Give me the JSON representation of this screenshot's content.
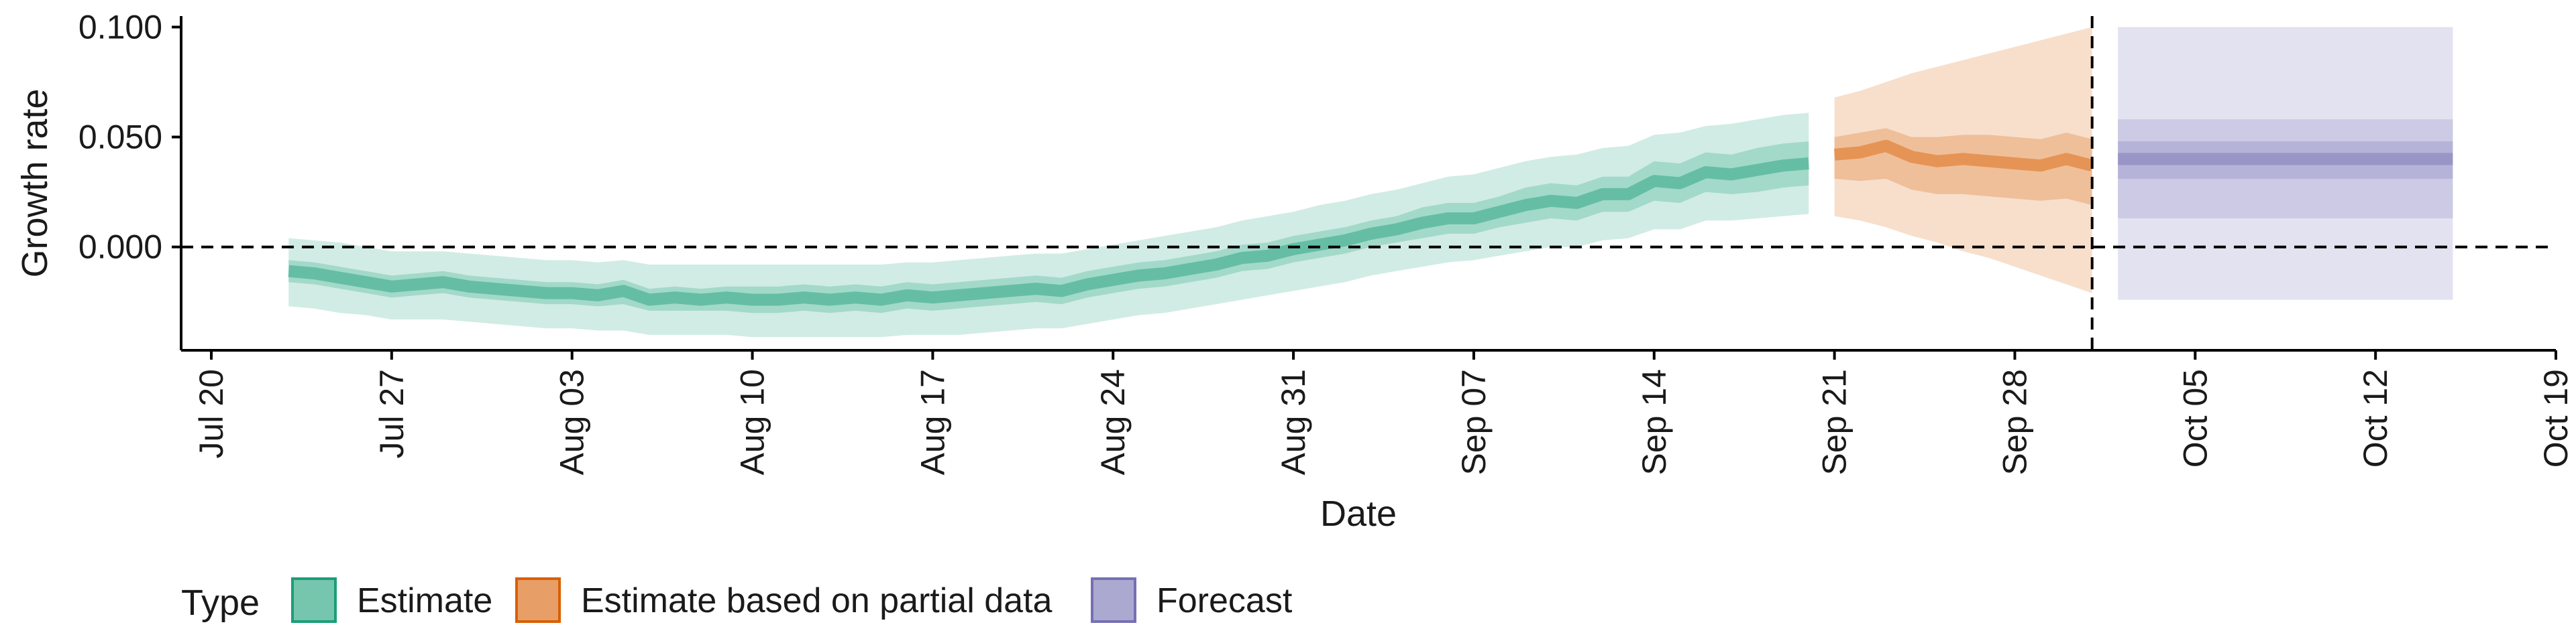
{
  "chart_data": {
    "type": "area",
    "xlabel": "Date",
    "ylabel": "Growth rate",
    "x_axis": {
      "type": "date",
      "range": [
        "2020-07-20",
        "2020-10-19"
      ],
      "ticks": [
        "2020-07-20",
        "2020-07-27",
        "2020-08-03",
        "2020-08-10",
        "2020-08-17",
        "2020-08-24",
        "2020-08-31",
        "2020-09-07",
        "2020-09-14",
        "2020-09-21",
        "2020-09-28",
        "2020-10-05",
        "2020-10-12",
        "2020-10-19"
      ],
      "tick_labels": [
        "Jul 20",
        "Jul 27",
        "Aug 03",
        "Aug 10",
        "Aug 17",
        "Aug 24",
        "Aug 31",
        "Sep 07",
        "Sep 14",
        "Sep 21",
        "Sep 28",
        "Oct 05",
        "Oct 12",
        "Oct 19"
      ]
    },
    "y_axis": {
      "range": [
        -0.047,
        0.105
      ],
      "ticks": [
        0.0,
        0.05,
        0.1
      ],
      "tick_labels": [
        "0.000",
        "0.050",
        "0.100"
      ]
    },
    "reference_lines": {
      "horizontal_y": 0.0,
      "vertical_date": "2020-10-01"
    },
    "grid": false,
    "legend": {
      "position": "bottom-left",
      "title": "Type",
      "items": [
        {
          "label": "Estimate",
          "color": "#1b9e77"
        },
        {
          "label": "Estimate based on partial data",
          "color": "#d95f02"
        },
        {
          "label": "Forecast",
          "color": "#7570b3"
        }
      ]
    },
    "series": [
      {
        "name": "Estimate",
        "color": "#1b9e77",
        "x": [
          "2020-07-23",
          "2020-07-24",
          "2020-07-25",
          "2020-07-26",
          "2020-07-27",
          "2020-07-28",
          "2020-07-29",
          "2020-07-30",
          "2020-07-31",
          "2020-08-01",
          "2020-08-02",
          "2020-08-03",
          "2020-08-04",
          "2020-08-05",
          "2020-08-06",
          "2020-08-07",
          "2020-08-08",
          "2020-08-09",
          "2020-08-10",
          "2020-08-11",
          "2020-08-12",
          "2020-08-13",
          "2020-08-14",
          "2020-08-15",
          "2020-08-16",
          "2020-08-17",
          "2020-08-18",
          "2020-08-19",
          "2020-08-20",
          "2020-08-21",
          "2020-08-22",
          "2020-08-23",
          "2020-08-24",
          "2020-08-25",
          "2020-08-26",
          "2020-08-27",
          "2020-08-28",
          "2020-08-29",
          "2020-08-30",
          "2020-08-31",
          "2020-09-01",
          "2020-09-02",
          "2020-09-03",
          "2020-09-04",
          "2020-09-05",
          "2020-09-06",
          "2020-09-07",
          "2020-09-08",
          "2020-09-09",
          "2020-09-10",
          "2020-09-11",
          "2020-09-12",
          "2020-09-13",
          "2020-09-14",
          "2020-09-15",
          "2020-09-16",
          "2020-09-17",
          "2020-09-18",
          "2020-09-19",
          "2020-09-20"
        ],
        "median": [
          -0.011,
          -0.012,
          -0.014,
          -0.016,
          -0.018,
          -0.017,
          -0.016,
          -0.018,
          -0.019,
          -0.02,
          -0.021,
          -0.021,
          -0.022,
          -0.02,
          -0.024,
          -0.023,
          -0.024,
          -0.023,
          -0.024,
          -0.024,
          -0.023,
          -0.024,
          -0.023,
          -0.024,
          -0.022,
          -0.023,
          -0.022,
          -0.021,
          -0.02,
          -0.019,
          -0.02,
          -0.017,
          -0.015,
          -0.013,
          -0.012,
          -0.01,
          -0.008,
          -0.005,
          -0.004,
          -0.001,
          0.001,
          0.003,
          0.006,
          0.008,
          0.011,
          0.013,
          0.013,
          0.016,
          0.019,
          0.021,
          0.02,
          0.024,
          0.024,
          0.03,
          0.029,
          0.034,
          0.033,
          0.035,
          0.037,
          0.038
        ],
        "inner_lower": [
          -0.016,
          -0.017,
          -0.019,
          -0.021,
          -0.023,
          -0.022,
          -0.021,
          -0.023,
          -0.024,
          -0.025,
          -0.026,
          -0.026,
          -0.027,
          -0.026,
          -0.029,
          -0.029,
          -0.029,
          -0.029,
          -0.03,
          -0.03,
          -0.029,
          -0.03,
          -0.029,
          -0.03,
          -0.028,
          -0.029,
          -0.028,
          -0.027,
          -0.026,
          -0.025,
          -0.026,
          -0.023,
          -0.021,
          -0.019,
          -0.018,
          -0.016,
          -0.014,
          -0.011,
          -0.01,
          -0.007,
          -0.005,
          -0.003,
          0.0,
          0.002,
          0.004,
          0.006,
          0.006,
          0.009,
          0.011,
          0.013,
          0.012,
          0.016,
          0.016,
          0.021,
          0.02,
          0.025,
          0.024,
          0.025,
          0.027,
          0.028
        ],
        "inner_upper": [
          -0.006,
          -0.007,
          -0.009,
          -0.011,
          -0.013,
          -0.012,
          -0.011,
          -0.013,
          -0.014,
          -0.015,
          -0.016,
          -0.016,
          -0.017,
          -0.015,
          -0.019,
          -0.018,
          -0.019,
          -0.018,
          -0.018,
          -0.018,
          -0.017,
          -0.018,
          -0.017,
          -0.018,
          -0.016,
          -0.017,
          -0.016,
          -0.015,
          -0.014,
          -0.013,
          -0.014,
          -0.011,
          -0.009,
          -0.007,
          -0.006,
          -0.004,
          -0.002,
          0.001,
          0.002,
          0.005,
          0.007,
          0.009,
          0.012,
          0.014,
          0.018,
          0.02,
          0.02,
          0.023,
          0.027,
          0.029,
          0.028,
          0.032,
          0.032,
          0.039,
          0.038,
          0.043,
          0.042,
          0.045,
          0.047,
          0.048
        ],
        "outer_lower": [
          -0.027,
          -0.028,
          -0.03,
          -0.031,
          -0.033,
          -0.033,
          -0.033,
          -0.034,
          -0.035,
          -0.036,
          -0.037,
          -0.037,
          -0.038,
          -0.038,
          -0.04,
          -0.04,
          -0.04,
          -0.04,
          -0.041,
          -0.041,
          -0.041,
          -0.041,
          -0.041,
          -0.041,
          -0.04,
          -0.04,
          -0.04,
          -0.039,
          -0.038,
          -0.037,
          -0.037,
          -0.035,
          -0.033,
          -0.031,
          -0.03,
          -0.028,
          -0.026,
          -0.024,
          -0.022,
          -0.02,
          -0.018,
          -0.016,
          -0.013,
          -0.011,
          -0.009,
          -0.007,
          -0.006,
          -0.004,
          -0.002,
          0.0,
          0.0,
          0.003,
          0.004,
          0.008,
          0.008,
          0.012,
          0.012,
          0.013,
          0.014,
          0.015
        ],
        "outer_upper": [
          0.004,
          0.003,
          0.002,
          0.0,
          -0.002,
          -0.002,
          -0.002,
          -0.003,
          -0.004,
          -0.005,
          -0.006,
          -0.006,
          -0.007,
          -0.006,
          -0.008,
          -0.008,
          -0.008,
          -0.008,
          -0.008,
          -0.008,
          -0.008,
          -0.008,
          -0.008,
          -0.008,
          -0.007,
          -0.007,
          -0.006,
          -0.005,
          -0.004,
          -0.003,
          -0.003,
          -0.001,
          0.001,
          0.003,
          0.005,
          0.007,
          0.009,
          0.012,
          0.014,
          0.016,
          0.019,
          0.021,
          0.024,
          0.026,
          0.029,
          0.032,
          0.033,
          0.036,
          0.039,
          0.041,
          0.042,
          0.045,
          0.046,
          0.051,
          0.052,
          0.055,
          0.056,
          0.058,
          0.06,
          0.061
        ]
      },
      {
        "name": "Estimate based on partial data",
        "color": "#d95f02",
        "x": [
          "2020-09-21",
          "2020-09-22",
          "2020-09-23",
          "2020-09-24",
          "2020-09-25",
          "2020-09-26",
          "2020-09-27",
          "2020-09-28",
          "2020-09-29",
          "2020-09-30",
          "2020-10-01"
        ],
        "median": [
          0.042,
          0.043,
          0.046,
          0.041,
          0.039,
          0.04,
          0.039,
          0.038,
          0.037,
          0.04,
          0.037
        ],
        "inner_lower": [
          0.031,
          0.03,
          0.031,
          0.026,
          0.024,
          0.024,
          0.023,
          0.022,
          0.021,
          0.022,
          0.019
        ],
        "inner_upper": [
          0.05,
          0.052,
          0.054,
          0.05,
          0.05,
          0.051,
          0.051,
          0.05,
          0.049,
          0.052,
          0.049
        ],
        "outer_lower": [
          0.014,
          0.012,
          0.009,
          0.005,
          0.002,
          -0.002,
          -0.005,
          -0.009,
          -0.013,
          -0.017,
          -0.021
        ],
        "outer_upper": [
          0.068,
          0.071,
          0.075,
          0.079,
          0.082,
          0.085,
          0.088,
          0.091,
          0.094,
          0.097,
          0.1
        ]
      },
      {
        "name": "Forecast",
        "color": "#7570b3",
        "x": [
          "2020-10-02",
          "2020-10-15"
        ],
        "median": [
          0.04,
          0.04
        ],
        "inner_lower": [
          0.031,
          0.031
        ],
        "inner_upper": [
          0.048,
          0.048
        ],
        "mid_lower": [
          0.013,
          0.013
        ],
        "mid_upper": [
          0.058,
          0.058
        ],
        "outer_lower": [
          -0.024,
          -0.024
        ],
        "outer_upper": [
          0.1,
          0.1
        ]
      }
    ]
  }
}
